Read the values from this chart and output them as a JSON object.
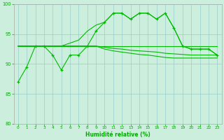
{
  "x": [
    0,
    1,
    2,
    3,
    4,
    5,
    6,
    7,
    8,
    9,
    10,
    11,
    12,
    13,
    14,
    15,
    16,
    17,
    18,
    19,
    20,
    21,
    22,
    23
  ],
  "line_jagged": [
    87,
    89.5,
    93,
    93,
    91.5,
    89,
    91.5,
    91.5,
    93,
    95.5,
    97,
    98.5,
    98.5,
    97.5,
    98.5,
    98.5,
    97.5,
    98.5,
    96,
    93,
    92.5,
    92.5,
    92.5,
    91.5
  ],
  "line_flat1": [
    93,
    93,
    93,
    93,
    93,
    93,
    93,
    93,
    93,
    93,
    93,
    93,
    93,
    93,
    93,
    93,
    93,
    93,
    93,
    93,
    93,
    93,
    93,
    93
  ],
  "line_flat2": [
    93,
    93,
    93,
    93,
    93,
    93,
    93,
    93,
    93,
    93,
    92.8,
    92.6,
    92.5,
    92.3,
    92.2,
    92.1,
    92.0,
    91.8,
    91.7,
    91.6,
    91.5,
    91.5,
    91.5,
    91.5
  ],
  "line_flat3": [
    93,
    93,
    93,
    93,
    93,
    93,
    93,
    93,
    93,
    93,
    92.5,
    92.2,
    92.0,
    91.8,
    91.6,
    91.5,
    91.3,
    91.1,
    91.0,
    91.0,
    91.0,
    91.0,
    91.0,
    91.0
  ],
  "line_smooth": [
    93,
    93,
    93,
    93,
    93,
    93,
    93.5,
    94.0,
    95.5,
    96.5,
    97,
    98.5,
    98.5,
    97.5,
    98.5,
    98.5,
    97.5,
    98.5,
    96,
    93,
    92.5,
    92.5,
    92.5,
    91.5
  ],
  "ylim": [
    80,
    100
  ],
  "xlim": [
    -0.5,
    23.5
  ],
  "yticks": [
    80,
    85,
    90,
    95,
    100
  ],
  "xticks": [
    0,
    1,
    2,
    3,
    4,
    5,
    6,
    7,
    8,
    9,
    10,
    11,
    12,
    13,
    14,
    15,
    16,
    17,
    18,
    19,
    20,
    21,
    22,
    23
  ],
  "xlabel": "Humidité relative (%)",
  "line_color": "#00bb00",
  "bg_color": "#cceedd",
  "grid_color": "#99cccc",
  "tick_color": "#00aa00",
  "label_color": "#00aa00"
}
